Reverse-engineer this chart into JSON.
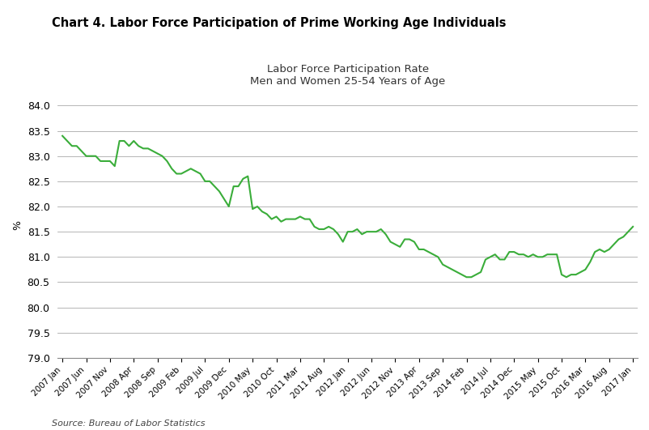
{
  "title": "Chart 4. Labor Force Participation of Prime Working Age Individuals",
  "subtitle": "Labor Force Participation Rate\nMen and Women 25-54 Years of Age",
  "ylabel": "%",
  "source": "Source: Bureau of Labor Statistics",
  "line_color": "#3aad3a",
  "background_color": "#ffffff",
  "ylim": [
    79.0,
    84.25
  ],
  "yticks": [
    79.0,
    79.5,
    80.0,
    80.5,
    81.0,
    81.5,
    82.0,
    82.5,
    83.0,
    83.5,
    84.0
  ],
  "xtick_labels": [
    "2007 Jan",
    "2007 Jun",
    "2007 Nov",
    "2008 Apr",
    "2008 Sep",
    "2009 Feb",
    "2009 Jul",
    "2009 Dec",
    "2010 May",
    "2010 Oct",
    "2011 Mar",
    "2011 Aug",
    "2012 Jan",
    "2012 Jun",
    "2012 Nov",
    "2013 Apr",
    "2013 Sep",
    "2014 Feb",
    "2014 Jul",
    "2014 Dec",
    "2015 May",
    "2015 Oct",
    "2016 Mar",
    "2016 Aug",
    "2017 Jan"
  ],
  "actual_values": [
    83.4,
    83.3,
    83.2,
    83.2,
    83.1,
    83.0,
    83.0,
    83.0,
    82.9,
    82.9,
    82.9,
    82.8,
    83.3,
    83.3,
    83.2,
    83.3,
    83.2,
    83.15,
    83.15,
    83.1,
    83.05,
    83.0,
    82.9,
    82.75,
    82.65,
    82.65,
    82.7,
    82.75,
    82.7,
    82.65,
    82.5,
    82.5,
    82.4,
    82.3,
    82.15,
    82.0,
    82.4,
    82.4,
    82.55,
    82.6,
    81.95,
    82.0,
    81.9,
    81.85,
    81.75,
    81.8,
    81.7,
    81.75,
    81.75,
    81.75,
    81.8,
    81.75,
    81.75,
    81.6,
    81.55,
    81.55,
    81.6,
    81.55,
    81.45,
    81.3,
    81.5,
    81.5,
    81.55,
    81.45,
    81.5,
    81.5,
    81.5,
    81.55,
    81.45,
    81.3,
    81.25,
    81.2,
    81.35,
    81.35,
    81.3,
    81.15,
    81.15,
    81.1,
    81.05,
    81.0,
    80.85,
    80.8,
    80.75,
    80.7,
    80.65,
    80.6,
    80.6,
    80.65,
    80.7,
    80.95,
    81.0,
    81.05,
    80.95,
    80.95,
    81.1,
    81.1,
    81.05,
    81.05,
    81.0,
    81.05,
    81.0,
    81.0,
    81.05,
    81.05,
    81.05,
    80.65,
    80.6,
    80.65,
    80.65,
    80.7,
    80.75,
    80.9,
    81.1,
    81.15,
    81.1,
    81.15,
    81.25,
    81.35,
    81.4,
    81.5,
    81.6
  ]
}
